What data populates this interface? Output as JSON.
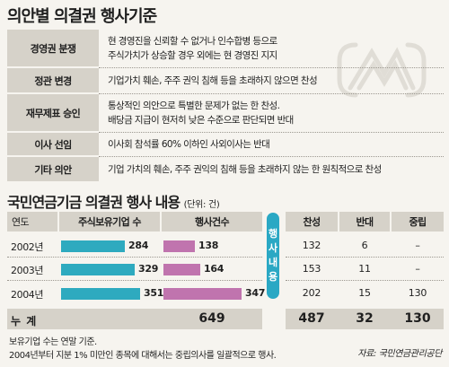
{
  "title": "의안별 의결권 행사기준",
  "criteria": [
    {
      "label": "경영권 분쟁",
      "lines": [
        "현 경영진을 신뢰할 수 없거나 인수합병 등으로",
        "주식가치가 상승할 경우 외에는 현 경영진 지지"
      ]
    },
    {
      "label": "정관 변경",
      "lines": [
        "기업가치 훼손, 주주 권익 침해 등을 초래하지 않으면 찬성"
      ]
    },
    {
      "label": "재무제표 승인",
      "lines": [
        "통상적인 의안으로 특별한 문제가 없는 한 찬성.",
        "배당금 지급이 현저히 낮은 수준으로 판단되면 반대"
      ]
    },
    {
      "label": "이사 선임",
      "lines": [
        "이사회 참석률 60% 이하인 사외이사는 반대"
      ]
    },
    {
      "label": "기타 의안",
      "lines": [
        "기업 가치의 훼손, 주주 권익의 침해 등을 초래하지 않는 한 원칙적으로 찬성"
      ]
    }
  ],
  "section2": {
    "title": "국민연금기금 의결권 행사 내용",
    "unit": "(단위: 건)"
  },
  "headers": {
    "year": "연도",
    "holdings": "주식보유기업 수",
    "exercised": "행사건수",
    "for": "찬성",
    "against": "반대",
    "abstain": "중립"
  },
  "badge": [
    "행",
    "사",
    "내",
    "용"
  ],
  "rows": [
    {
      "year": "2002년",
      "holdings": 284,
      "exercised": 138,
      "for": "132",
      "against": "6",
      "abstain": "–"
    },
    {
      "year": "2003년",
      "holdings": 329,
      "exercised": 164,
      "for": "153",
      "against": "11",
      "abstain": "–"
    },
    {
      "year": "2004년",
      "holdings": 351,
      "exercised": 347,
      "for": "202",
      "against": "15",
      "abstain": "130"
    }
  ],
  "total": {
    "label": "누 계",
    "exercised": "649",
    "for": "487",
    "against": "32",
    "abstain": "130"
  },
  "notes": [
    "보유기업 수는 연말 기준.",
    "2004년부터 지분 1% 미만인 종목에 대해서는 중립의사를 일괄적으로 행사."
  ],
  "source": "자료: 국민연금관리공단",
  "chart_data": {
    "type": "bar",
    "categories": [
      "2002년",
      "2003년",
      "2004년"
    ],
    "series": [
      {
        "name": "주식보유기업 수",
        "values": [
          284,
          329,
          351
        ],
        "color": "#2eaabf"
      },
      {
        "name": "행사건수",
        "values": [
          138,
          164,
          347
        ],
        "color": "#c074ae"
      }
    ],
    "ylim": [
      0,
      400
    ]
  }
}
